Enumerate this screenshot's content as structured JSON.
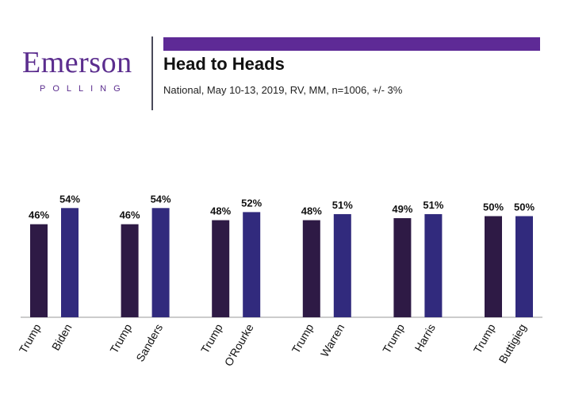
{
  "logo": {
    "word": "Emerson",
    "sub": "POLLING"
  },
  "header": {
    "title": "Head to Heads",
    "subtitle": "National, May 10-13, 2019, RV, MM, n=1006, +/- 3%"
  },
  "colors": {
    "brand": "#5b2d8e",
    "accent_bar": "#5e2a96",
    "trump_bar": "#2e1a45",
    "challenger_bar": "#312a7d",
    "axis": "#9a9a9a"
  },
  "chart_data": {
    "type": "bar",
    "title": "Head to Heads",
    "subtitle": "National, May 10-13, 2019, RV, MM, n=1006, +/- 3%",
    "xlabel": "",
    "ylabel": "",
    "ylim": [
      0,
      60
    ],
    "grid": false,
    "value_suffix": "%",
    "matchups": [
      {
        "categories": [
          "Trump",
          "Biden"
        ],
        "values": [
          46,
          54
        ]
      },
      {
        "categories": [
          "Trump",
          "Sanders"
        ],
        "values": [
          46,
          54
        ]
      },
      {
        "categories": [
          "Trump",
          "O'Rourke"
        ],
        "values": [
          48,
          52
        ]
      },
      {
        "categories": [
          "Trump",
          "Warren"
        ],
        "values": [
          48,
          51
        ]
      },
      {
        "categories": [
          "Trump",
          "Harris"
        ],
        "values": [
          49,
          51
        ]
      },
      {
        "categories": [
          "Trump",
          "Buttigieg"
        ],
        "values": [
          50,
          50
        ]
      }
    ]
  }
}
